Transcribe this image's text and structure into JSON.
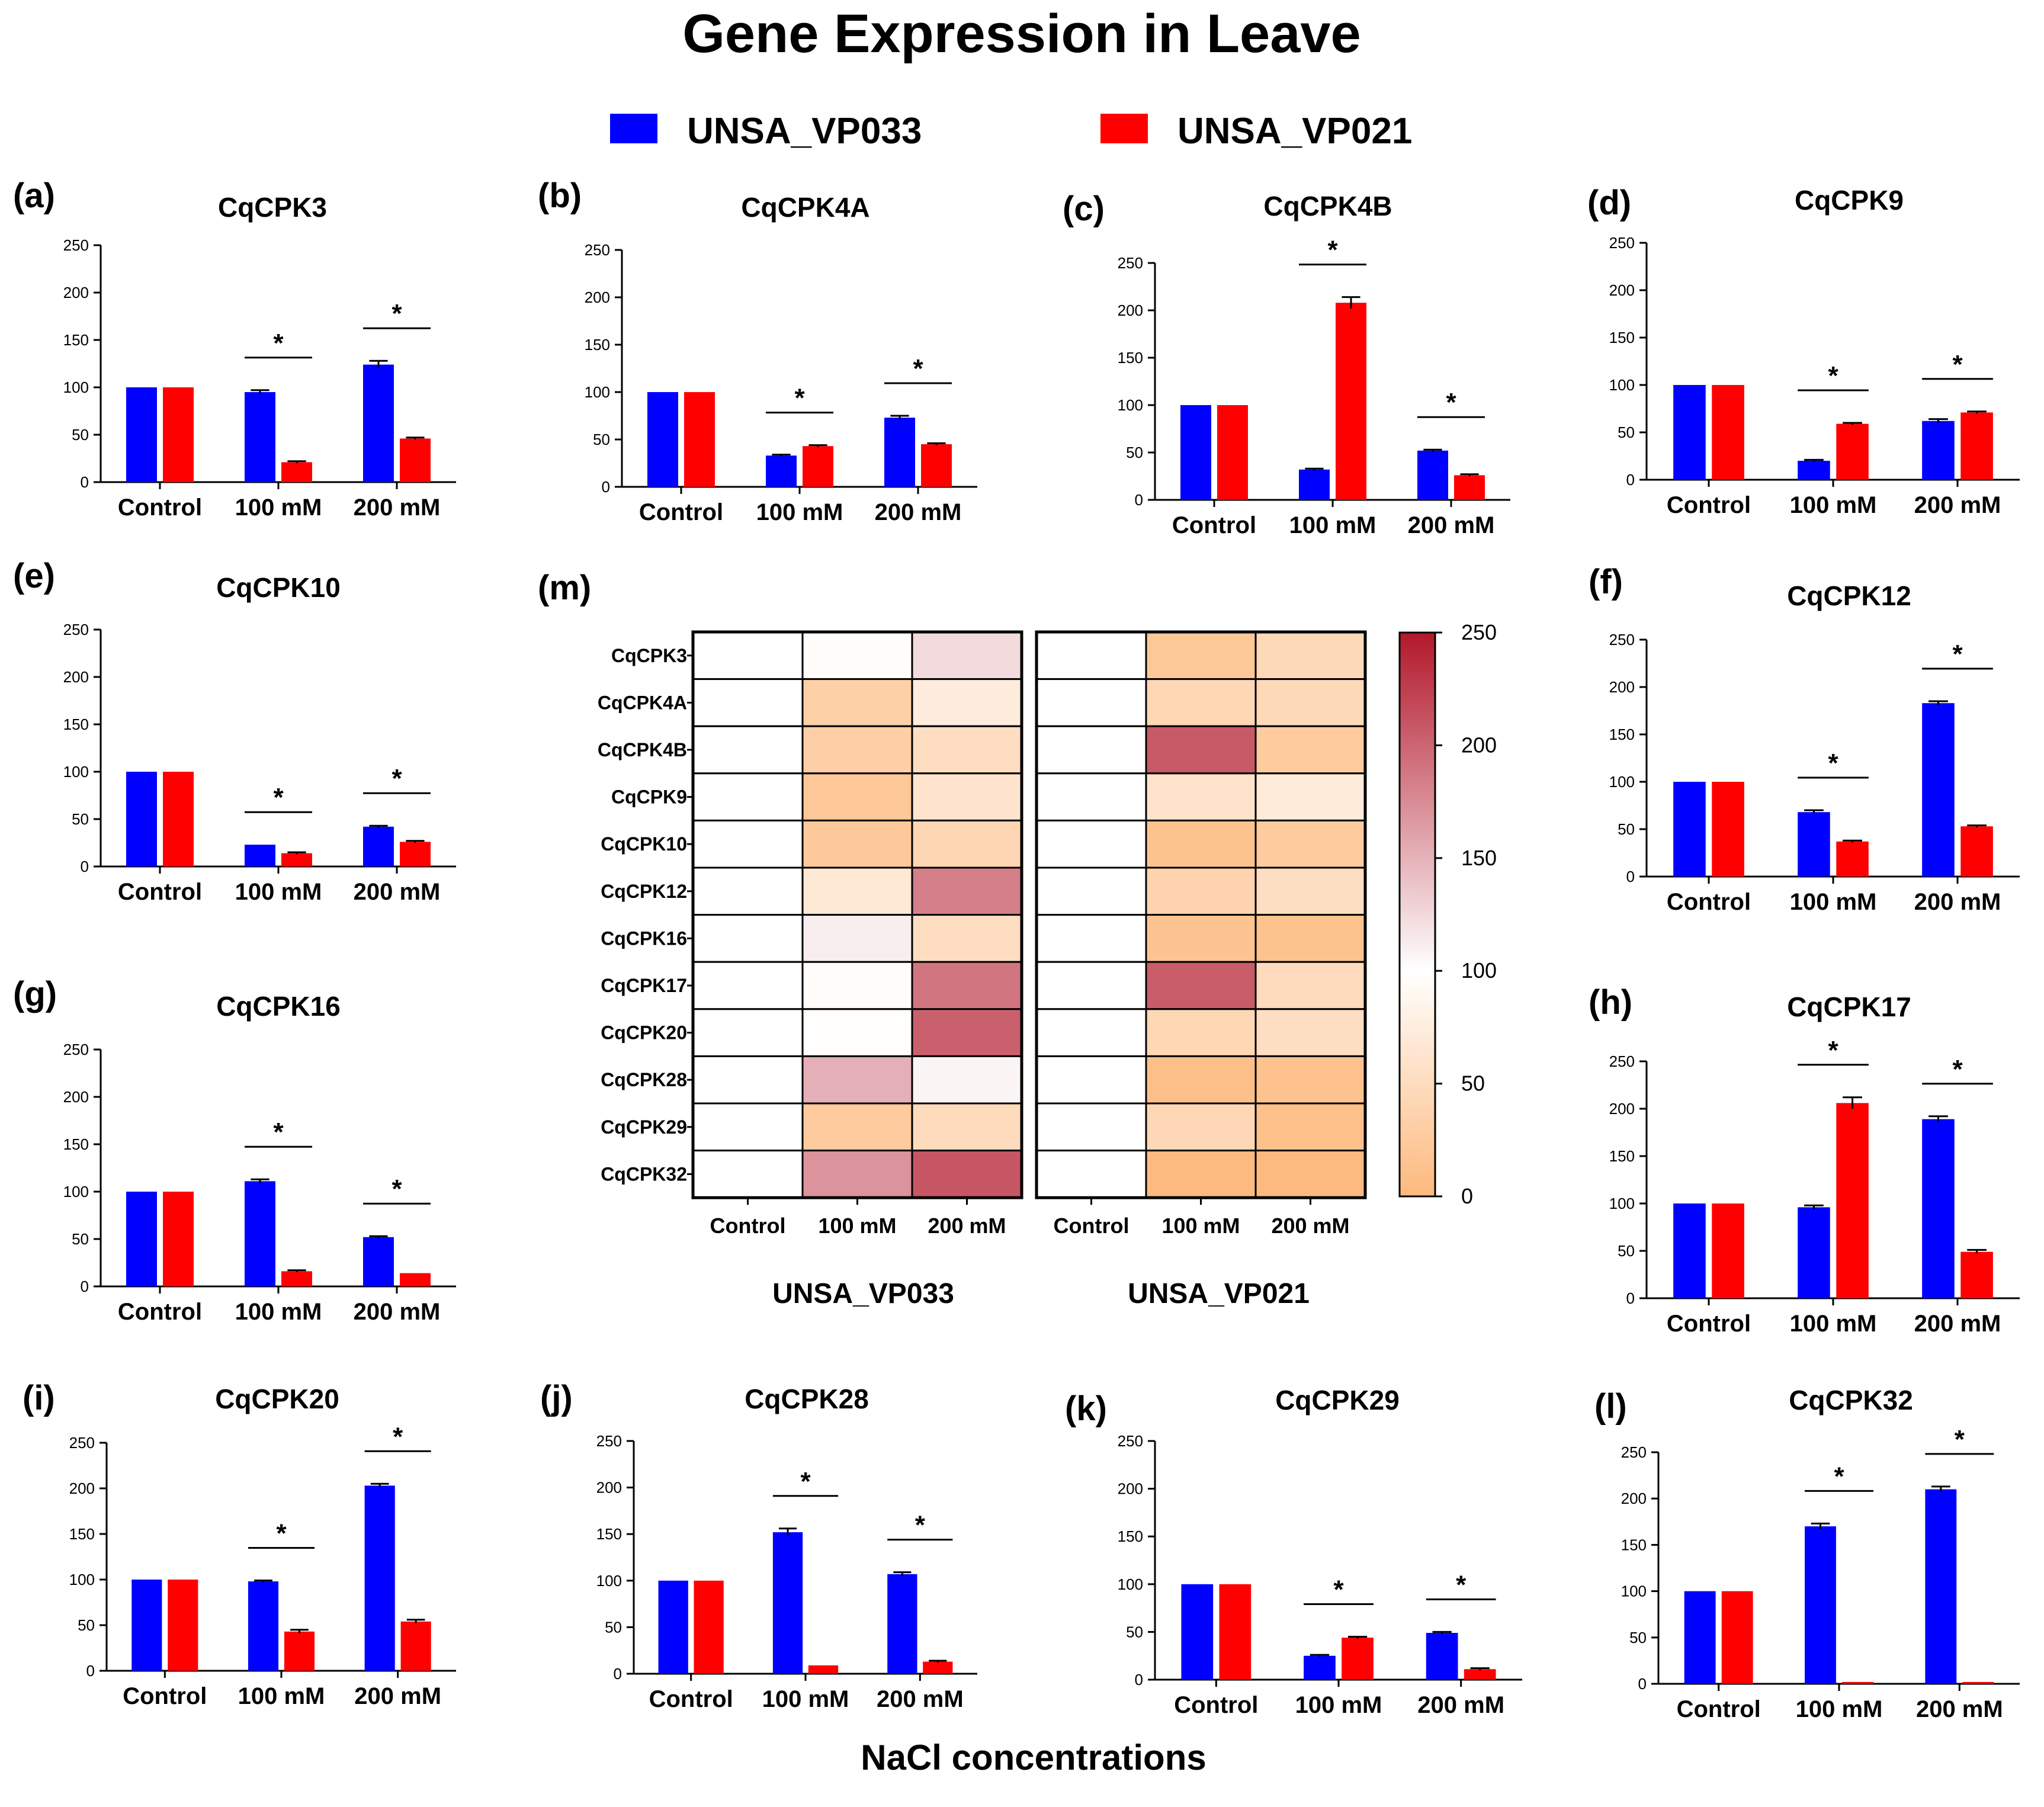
{
  "title": "Gene Expression in Leave",
  "legend": [
    {
      "label": "UNSA_VP033",
      "color": "#0000ff"
    },
    {
      "label": "UNSA_VP021",
      "color": "#ff0000"
    }
  ],
  "xlabel": "NaCl concentrations",
  "chart_data": [
    {
      "panel": "(a)",
      "title": "CqCPK3",
      "type": "bar",
      "categories": [
        "Control",
        "100 mM",
        "200 mM"
      ],
      "ylim": [
        0,
        250
      ],
      "yticks": [
        "0",
        "50",
        "100",
        "150",
        "200",
        "250"
      ],
      "series": [
        {
          "name": "UNSA_VP033",
          "values": [
            100,
            95,
            124
          ],
          "errors": [
            0,
            2,
            4
          ]
        },
        {
          "name": "UNSA_VP021",
          "values": [
            100,
            21,
            46
          ],
          "errors": [
            0,
            1,
            1
          ]
        }
      ],
      "significance": [
        "",
        "*",
        "*"
      ]
    },
    {
      "panel": "(b)",
      "title": "CqCPK4A",
      "type": "bar",
      "categories": [
        "Control",
        "100 mM",
        "200 mM"
      ],
      "ylim": [
        0,
        250
      ],
      "yticks": [
        "0",
        "50",
        "100",
        "150",
        "200",
        "250"
      ],
      "series": [
        {
          "name": "UNSA_VP033",
          "values": [
            100,
            33,
            73
          ],
          "errors": [
            0,
            1,
            2
          ]
        },
        {
          "name": "UNSA_VP021",
          "values": [
            100,
            43,
            45
          ],
          "errors": [
            0,
            1,
            1
          ]
        }
      ],
      "significance": [
        "",
        "*",
        "*"
      ]
    },
    {
      "panel": "(c)",
      "title": "CqCPK4B",
      "type": "bar",
      "categories": [
        "Control",
        "100 mM",
        "200 mM"
      ],
      "ylim": [
        0,
        250
      ],
      "yticks": [
        "0",
        "50",
        "100",
        "150",
        "200",
        "250"
      ],
      "series": [
        {
          "name": "UNSA_VP033",
          "values": [
            100,
            32,
            52
          ],
          "errors": [
            0,
            1,
            1
          ]
        },
        {
          "name": "UNSA_VP021",
          "values": [
            100,
            208,
            26
          ],
          "errors": [
            0,
            6,
            1
          ]
        }
      ],
      "significance": [
        "",
        "*",
        "*"
      ]
    },
    {
      "panel": "(d)",
      "title": "CqCPK9",
      "type": "bar",
      "categories": [
        "Control",
        "100 mM",
        "200 mM"
      ],
      "ylim": [
        0,
        250
      ],
      "yticks": [
        "0",
        "50",
        "100",
        "150",
        "200",
        "250"
      ],
      "series": [
        {
          "name": "UNSA_VP033",
          "values": [
            100,
            20,
            62
          ],
          "errors": [
            0,
            1,
            2
          ]
        },
        {
          "name": "UNSA_VP021",
          "values": [
            100,
            59,
            71
          ],
          "errors": [
            0,
            1,
            1
          ]
        }
      ],
      "significance": [
        "",
        "*",
        "*"
      ]
    },
    {
      "panel": "(e)",
      "title": "CqCPK10",
      "type": "bar",
      "categories": [
        "Control",
        "100 mM",
        "200 mM"
      ],
      "ylim": [
        0,
        250
      ],
      "yticks": [
        "0",
        "50",
        "100",
        "150",
        "200",
        "250"
      ],
      "series": [
        {
          "name": "UNSA_VP033",
          "values": [
            100,
            23,
            42
          ],
          "errors": [
            0,
            0,
            1
          ]
        },
        {
          "name": "UNSA_VP021",
          "values": [
            100,
            14,
            26
          ],
          "errors": [
            0,
            1,
            1
          ]
        }
      ],
      "significance": [
        "",
        "*",
        "*"
      ]
    },
    {
      "panel": "(f)",
      "title": "CqCPK12",
      "type": "bar",
      "categories": [
        "Control",
        "100 mM",
        "200 mM"
      ],
      "ylim": [
        0,
        250
      ],
      "yticks": [
        "0",
        "50",
        "100",
        "150",
        "200",
        "250"
      ],
      "series": [
        {
          "name": "UNSA_VP033",
          "values": [
            100,
            68,
            183
          ],
          "errors": [
            0,
            2,
            2
          ]
        },
        {
          "name": "UNSA_VP021",
          "values": [
            100,
            37,
            53
          ],
          "errors": [
            0,
            1,
            1
          ]
        }
      ],
      "significance": [
        "",
        "*",
        "*"
      ]
    },
    {
      "panel": "(g)",
      "title": "CqCPK16",
      "type": "bar",
      "categories": [
        "Control",
        "100 mM",
        "200 mM"
      ],
      "ylim": [
        0,
        250
      ],
      "yticks": [
        "0",
        "50",
        "100",
        "150",
        "200",
        "250"
      ],
      "series": [
        {
          "name": "UNSA_VP033",
          "values": [
            100,
            111,
            52
          ],
          "errors": [
            0,
            2,
            1
          ]
        },
        {
          "name": "UNSA_VP021",
          "values": [
            100,
            16,
            14
          ],
          "errors": [
            0,
            1,
            0
          ]
        }
      ],
      "significance": [
        "",
        "*",
        "*"
      ]
    },
    {
      "panel": "(h)",
      "title": "CqCPK17",
      "type": "bar",
      "categories": [
        "Control",
        "100 mM",
        "200 mM"
      ],
      "ylim": [
        0,
        250
      ],
      "yticks": [
        "0",
        "50",
        "100",
        "150",
        "200",
        "250"
      ],
      "series": [
        {
          "name": "UNSA_VP033",
          "values": [
            100,
            96,
            189
          ],
          "errors": [
            0,
            2,
            3
          ]
        },
        {
          "name": "UNSA_VP021",
          "values": [
            100,
            206,
            49
          ],
          "errors": [
            0,
            6,
            2
          ]
        }
      ],
      "significance": [
        "",
        "*",
        "*"
      ]
    },
    {
      "panel": "(i)",
      "title": "CqCPK20",
      "type": "bar",
      "categories": [
        "Control",
        "100 mM",
        "200 mM"
      ],
      "ylim": [
        0,
        250
      ],
      "yticks": [
        "0",
        "50",
        "100",
        "150",
        "200",
        "250"
      ],
      "series": [
        {
          "name": "UNSA_VP033",
          "values": [
            100,
            98,
            203
          ],
          "errors": [
            0,
            1,
            2
          ]
        },
        {
          "name": "UNSA_VP021",
          "values": [
            100,
            43,
            54
          ],
          "errors": [
            0,
            2,
            2
          ]
        }
      ],
      "significance": [
        "",
        "*",
        "*"
      ]
    },
    {
      "panel": "(j)",
      "title": "CqCPK28",
      "type": "bar",
      "categories": [
        "Control",
        "100 mM",
        "200 mM"
      ],
      "ylim": [
        0,
        250
      ],
      "yticks": [
        "0",
        "50",
        "100",
        "150",
        "200",
        "250"
      ],
      "series": [
        {
          "name": "UNSA_VP033",
          "values": [
            100,
            152,
            107
          ],
          "errors": [
            0,
            4,
            2
          ]
        },
        {
          "name": "UNSA_VP021",
          "values": [
            100,
            9,
            13
          ],
          "errors": [
            0,
            0,
            1
          ]
        }
      ],
      "significance": [
        "",
        "*",
        "*"
      ]
    },
    {
      "panel": "(k)",
      "title": "CqCPK29",
      "type": "bar",
      "categories": [
        "Control",
        "100 mM",
        "200 mM"
      ],
      "ylim": [
        0,
        250
      ],
      "yticks": [
        "0",
        "50",
        "100",
        "150",
        "200",
        "250"
      ],
      "series": [
        {
          "name": "UNSA_VP033",
          "values": [
            100,
            25,
            49
          ],
          "errors": [
            0,
            1,
            1
          ]
        },
        {
          "name": "UNSA_VP021",
          "values": [
            100,
            44,
            11
          ],
          "errors": [
            0,
            1,
            1
          ]
        }
      ],
      "significance": [
        "",
        "*",
        "*"
      ]
    },
    {
      "panel": "(l)",
      "title": "CqCPK32",
      "type": "bar",
      "categories": [
        "Control",
        "100 mM",
        "200 mM"
      ],
      "ylim": [
        0,
        250
      ],
      "yticks": [
        "0",
        "50",
        "100",
        "150",
        "200",
        "250"
      ],
      "series": [
        {
          "name": "UNSA_VP033",
          "values": [
            100,
            170,
            210
          ],
          "errors": [
            0,
            3,
            3
          ]
        },
        {
          "name": "UNSA_VP021",
          "values": [
            100,
            2,
            2
          ],
          "errors": [
            0,
            0,
            0
          ]
        }
      ],
      "significance": [
        "",
        "*",
        "*"
      ]
    },
    {
      "panel": "(m)",
      "type": "heatmap",
      "rows": [
        "CqCPK3",
        "CqCPK4A",
        "CqCPK4B",
        "CqCPK9",
        "CqCPK10",
        "CqCPK12",
        "CqCPK16",
        "CqCPK17",
        "CqCPK20",
        "CqCPK28",
        "CqCPK29",
        "CqCPK32"
      ],
      "columns": [
        "Control",
        "100 mM",
        "200 mM"
      ],
      "groups": [
        {
          "name": "UNSA_VP033",
          "values": [
            [
              100,
              95,
              124
            ],
            [
              100,
              33,
              73
            ],
            [
              100,
              32,
              52
            ],
            [
              100,
              20,
              62
            ],
            [
              100,
              23,
              42
            ],
            [
              100,
              68,
              183
            ],
            [
              100,
              111,
              52
            ],
            [
              100,
              96,
              189
            ],
            [
              100,
              98,
              203
            ],
            [
              100,
              152,
              107
            ],
            [
              100,
              25,
              49
            ],
            [
              100,
              170,
              210
            ]
          ]
        },
        {
          "name": "UNSA_VP021",
          "values": [
            [
              100,
              21,
              46
            ],
            [
              100,
              43,
              45
            ],
            [
              100,
              208,
              26
            ],
            [
              100,
              59,
              71
            ],
            [
              100,
              14,
              26
            ],
            [
              100,
              37,
              53
            ],
            [
              100,
              16,
              14
            ],
            [
              100,
              206,
              49
            ],
            [
              100,
              43,
              54
            ],
            [
              100,
              9,
              13
            ],
            [
              100,
              44,
              11
            ],
            [
              100,
              2,
              2
            ]
          ]
        }
      ],
      "colorbar": {
        "range": [
          0,
          250
        ],
        "ticks": [
          "0",
          "50",
          "100",
          "150",
          "200",
          "250"
        ],
        "low_color": "#fdb97d",
        "mid_color": "#ffffff",
        "high_color": "#b2182b"
      }
    }
  ]
}
